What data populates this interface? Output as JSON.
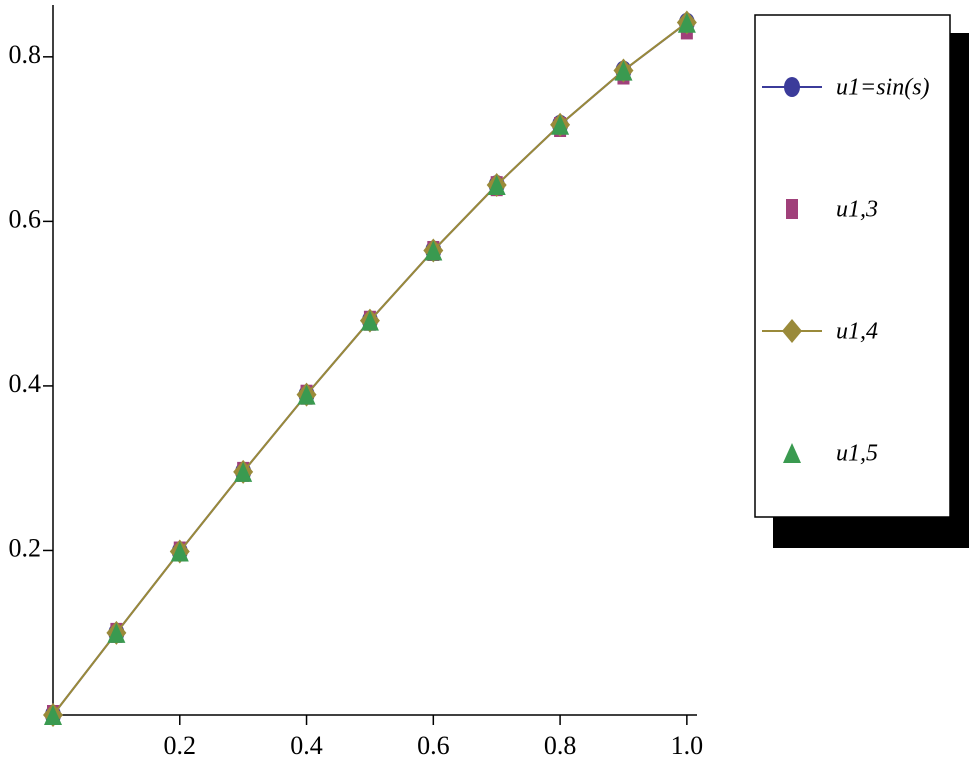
{
  "chart_data": {
    "type": "line",
    "x": [
      0,
      0.1,
      0.2,
      0.3,
      0.4,
      0.5,
      0.6,
      0.7,
      0.8,
      0.9,
      1.0
    ],
    "series": [
      {
        "name": "u1=sin(s)",
        "color": "#3b3b9a",
        "marker": "circle",
        "line": true,
        "values": [
          0,
          0.0998,
          0.1987,
          0.2955,
          0.3894,
          0.4794,
          0.5646,
          0.6442,
          0.7174,
          0.7833,
          0.8415
        ]
      },
      {
        "name": "u1,3",
        "color": "#a0407a",
        "marker": "square",
        "line": false,
        "values": [
          0,
          0.0998,
          0.1987,
          0.2955,
          0.3893,
          0.4792,
          0.564,
          0.6428,
          0.7147,
          0.7785,
          0.8333
        ]
      },
      {
        "name": "u1,4",
        "color": "#9a8a3a",
        "marker": "diamond",
        "line": true,
        "values": [
          0,
          0.0998,
          0.1987,
          0.2955,
          0.3894,
          0.4794,
          0.5646,
          0.6442,
          0.7174,
          0.7834,
          0.8417
        ]
      },
      {
        "name": "u1,5",
        "color": "#3a9a50",
        "marker": "triangle",
        "line": false,
        "values": [
          0,
          0.0998,
          0.1987,
          0.2955,
          0.3894,
          0.4794,
          0.5646,
          0.6442,
          0.7174,
          0.7833,
          0.8415
        ]
      }
    ],
    "xlim": [
      0,
      1.016
    ],
    "ylim": [
      0,
      0.863
    ],
    "xticks": [
      0.2,
      0.4,
      0.6,
      0.8,
      {
        "value": 1,
        "label": "1.0"
      }
    ],
    "yticks": [
      0.2,
      0.4,
      0.6,
      0.8
    ],
    "legend": "right"
  }
}
